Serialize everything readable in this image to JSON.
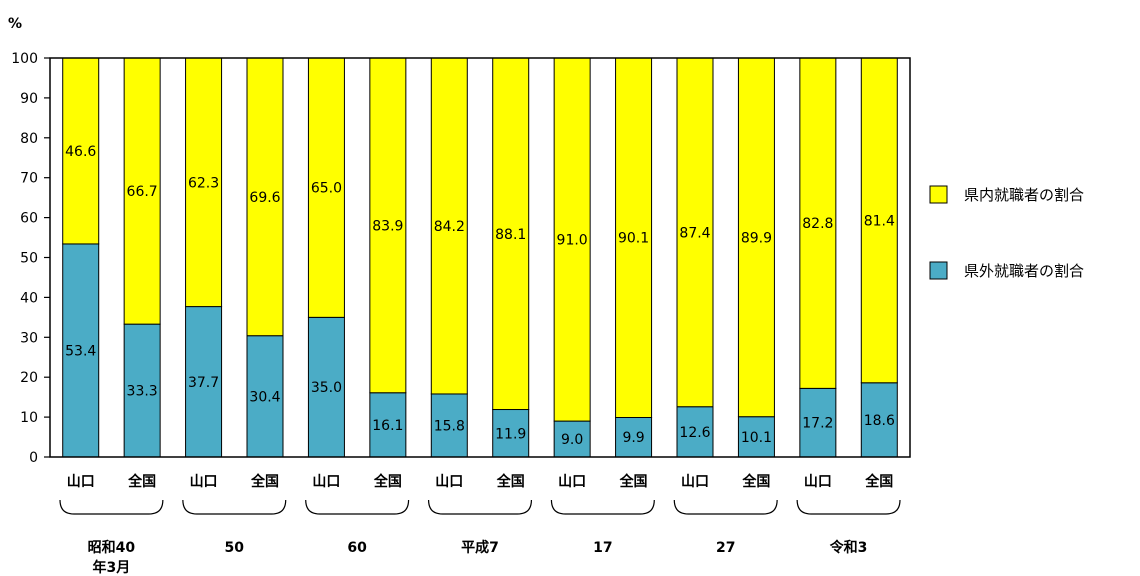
{
  "chart_data": {
    "type": "bar",
    "stacked": true,
    "y_unit": "%",
    "ylim": [
      0,
      100
    ],
    "yticks": [
      0,
      10,
      20,
      30,
      40,
      50,
      60,
      70,
      80,
      90,
      100
    ],
    "categories": [
      "山口",
      "全国",
      "山口",
      "全国",
      "山口",
      "全国",
      "山口",
      "全国",
      "山口",
      "全国",
      "山口",
      "全国",
      "山口",
      "全国"
    ],
    "groups": [
      {
        "label_lines": [
          "昭和40",
          "年3月"
        ]
      },
      {
        "label_lines": [
          "50"
        ]
      },
      {
        "label_lines": [
          "60"
        ]
      },
      {
        "label_lines": [
          "平成7"
        ]
      },
      {
        "label_lines": [
          "17"
        ]
      },
      {
        "label_lines": [
          "27"
        ]
      },
      {
        "label_lines": [
          "令和3"
        ]
      }
    ],
    "series": [
      {
        "name": "県外就職者の割合",
        "color": "#4bacc6",
        "values": [
          53.4,
          33.3,
          37.7,
          30.4,
          35.0,
          16.1,
          15.8,
          11.9,
          9.0,
          9.9,
          12.6,
          10.1,
          17.2,
          18.6
        ],
        "labels": [
          "53.4",
          "33.3",
          "37.7",
          "30.4",
          "35.0",
          "16.1",
          "15.8",
          "11.9",
          "9.0",
          "9.9",
          "12.6",
          "10.1",
          "17.2",
          "18.6"
        ]
      },
      {
        "name": "県内就職者の割合",
        "color": "#ffff00",
        "values": [
          46.6,
          66.7,
          62.3,
          69.6,
          65.0,
          83.9,
          84.2,
          88.1,
          91.0,
          90.1,
          87.4,
          89.9,
          82.8,
          81.4
        ],
        "labels": [
          "46.6",
          "66.7",
          "62.3",
          "69.6",
          "65.0",
          "83.9",
          "84.2",
          "88.1",
          "91.0",
          "90.1",
          "87.4",
          "89.9",
          "82.8",
          "81.4"
        ]
      }
    ],
    "legend": {
      "placement": "right",
      "order": [
        "県内就職者の割合",
        "県外就職者の割合"
      ]
    }
  }
}
